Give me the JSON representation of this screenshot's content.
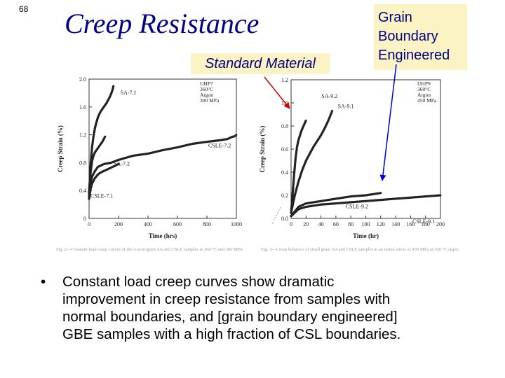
{
  "slide": {
    "number": "68",
    "title": "Creep Resistance",
    "label_standard": "Standard Material",
    "label_gbe_lines": [
      "Grain",
      "Boundary",
      "Engineered"
    ],
    "bullet": "•",
    "bullet_lines": [
      "Constant load creep curves show dramatic",
      "improvement in creep resistance from samples with",
      "normal boundaries, and [grain boundary engineered]",
      "GBE samples with a high fraction of CSL boundaries."
    ]
  },
  "colors": {
    "title": "#00008b",
    "label_text": "#000080",
    "label_bg": "#fbf3c4",
    "arrow_red": "#cc0000",
    "arrow_blue": "#0000cc",
    "curve": "#222222"
  },
  "chart_data": [
    {
      "type": "line",
      "xlabel": "Time (hrs)",
      "ylabel": "Creep Strain (%)",
      "xlim": [
        0,
        1000
      ],
      "ylim": [
        0,
        2.0
      ],
      "xticks": [
        "0",
        "200",
        "400",
        "600",
        "800",
        "1000"
      ],
      "yticks": [
        "0",
        "0.4",
        "0.8",
        "1.2",
        "1.6",
        "2.0"
      ],
      "legend": {
        "position": "top-right",
        "lines": [
          "UHP7",
          "360°C",
          "Argon",
          "300 MPa"
        ]
      },
      "series": [
        {
          "name": "SA-7.1",
          "x": [
            0,
            5,
            10,
            20,
            30,
            40,
            50,
            60,
            70,
            80,
            90,
            100,
            110,
            120,
            130,
            140,
            150,
            160,
            165
          ],
          "y": [
            0.38,
            0.55,
            0.75,
            1.02,
            1.18,
            1.3,
            1.38,
            1.45,
            1.5,
            1.54,
            1.57,
            1.6,
            1.63,
            1.66,
            1.7,
            1.74,
            1.79,
            1.85,
            1.9
          ]
        },
        {
          "name": "SA-7.2",
          "x": [
            0,
            5,
            10,
            20,
            30,
            40,
            50,
            60,
            70,
            80,
            90,
            100,
            110
          ],
          "y": [
            0.3,
            0.5,
            0.65,
            0.82,
            0.9,
            0.95,
            0.98,
            1.01,
            1.04,
            1.07,
            1.1,
            1.14,
            1.18
          ]
        },
        {
          "name": "CSLE-7.2",
          "x": [
            0,
            10,
            20,
            40,
            60,
            100,
            150,
            200,
            300,
            400,
            500,
            600,
            700,
            800,
            880,
            940,
            970,
            990,
            1000
          ],
          "y": [
            0.35,
            0.5,
            0.6,
            0.68,
            0.74,
            0.78,
            0.8,
            0.84,
            0.9,
            0.93,
            0.98,
            1.02,
            1.07,
            1.1,
            1.12,
            1.14,
            1.17,
            1.18,
            1.2
          ]
        },
        {
          "name": "CSLE-7.1",
          "x": [
            0,
            10,
            20,
            40,
            60,
            80,
            100,
            120,
            140,
            160,
            180,
            200
          ],
          "y": [
            0.28,
            0.42,
            0.5,
            0.58,
            0.63,
            0.66,
            0.68,
            0.7,
            0.72,
            0.74,
            0.76,
            0.78
          ]
        }
      ],
      "annotations": [
        "SA-7.1",
        "SA-7.2",
        "CSLE-7.2",
        "CSLE-7.1"
      ],
      "caption": "Fig. 2—Constant load creep curves of the coarse-grain SA and CSLE samples at 360 °C and 300 MPa."
    },
    {
      "type": "line",
      "xlabel": "Time (hr)",
      "ylabel": "Creep Strain (%)",
      "xlim": [
        0,
        200
      ],
      "ylim": [
        0,
        1.2
      ],
      "xticks": [
        "0",
        "20",
        "40",
        "60",
        "80",
        "100",
        "120",
        "140",
        "160",
        "180",
        "200"
      ],
      "yticks": [
        "0.0",
        "0.2",
        "0.4",
        "0.6",
        "0.8",
        "1.0",
        "1.2"
      ],
      "legend": {
        "position": "top-right",
        "lines": [
          "UHP9",
          "360°C",
          "Argon",
          "450 MPa"
        ]
      },
      "series": [
        {
          "name": "SA-9.1",
          "x": [
            0,
            2,
            4,
            6,
            8,
            10,
            12,
            14,
            16,
            18,
            20
          ],
          "y": [
            0.05,
            0.2,
            0.38,
            0.52,
            0.62,
            0.68,
            0.72,
            0.76,
            0.79,
            0.82,
            0.85
          ]
        },
        {
          "name": "SA-9.2",
          "x": [
            0,
            5,
            10,
            15,
            20,
            25,
            30,
            35,
            40,
            45,
            50,
            55
          ],
          "y": [
            0.05,
            0.2,
            0.32,
            0.42,
            0.5,
            0.56,
            0.62,
            0.67,
            0.72,
            0.78,
            0.85,
            0.93
          ]
        },
        {
          "name": "CSLE-9.2",
          "x": [
            0,
            10,
            20,
            40,
            60,
            80,
            100,
            120
          ],
          "y": [
            0.02,
            0.1,
            0.13,
            0.15,
            0.17,
            0.19,
            0.2,
            0.22
          ]
        },
        {
          "name": "CSLE-9.1",
          "x": [
            0,
            10,
            20,
            40,
            60,
            80,
            100,
            120,
            140,
            160,
            180,
            200
          ],
          "y": [
            0.02,
            0.08,
            0.1,
            0.12,
            0.13,
            0.14,
            0.15,
            0.16,
            0.17,
            0.18,
            0.19,
            0.2
          ]
        }
      ],
      "annotations": [
        "SA-9.2",
        "SA-9.1",
        "CSLE-9.2",
        "CSLE-9.1"
      ],
      "caption": "Fig. 3—Creep behavior of small grain SA and CSLE samples at an initial stress of 450 MPa at 360 °C argon."
    }
  ]
}
